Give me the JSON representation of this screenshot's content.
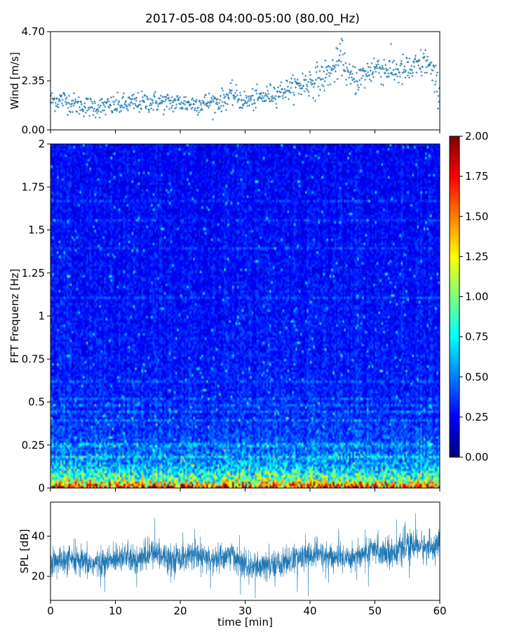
{
  "chart_data": [
    {
      "type": "scatter",
      "name": "wind-panel",
      "title": "2017-05-08 04:00-05:00 (80.00_Hz)",
      "xlabel": "",
      "ylabel": "Wind [m/s]",
      "xlim": [
        0,
        60
      ],
      "ylim": [
        0,
        4.7
      ],
      "yticks": [
        {
          "value": 0.0,
          "label": "0.00"
        },
        {
          "value": 2.35,
          "label": "2.35"
        },
        {
          "value": 4.7,
          "label": "4.70"
        }
      ],
      "xticks": [
        0,
        10,
        20,
        30,
        40,
        50,
        60
      ],
      "marker": "+",
      "color": "#1f77b4",
      "trend": {
        "x": [
          0,
          2,
          4,
          6,
          8,
          10,
          12,
          14,
          16,
          18,
          20,
          22,
          24,
          26,
          28,
          30,
          32,
          34,
          36,
          38,
          40,
          42,
          44,
          45,
          46,
          48,
          50,
          52,
          54,
          56,
          58,
          60
        ],
        "y": [
          1.4,
          1.45,
          1.2,
          1.1,
          1.1,
          1.15,
          1.25,
          1.3,
          1.35,
          1.3,
          1.3,
          1.25,
          1.3,
          1.35,
          1.7,
          1.35,
          1.5,
          1.7,
          1.9,
          2.1,
          2.3,
          2.5,
          3.0,
          3.6,
          2.4,
          2.5,
          3.0,
          2.9,
          2.8,
          2.9,
          3.3,
          1.8
        ]
      },
      "spread": 0.25,
      "samples_per_min": 14
    },
    {
      "type": "heatmap",
      "name": "spectrogram-panel",
      "xlabel": "",
      "ylabel": "FFT Frequenz [Hz]",
      "xlim": [
        0,
        60
      ],
      "ylim": [
        0,
        2
      ],
      "yticks": [
        {
          "value": 0,
          "label": "0"
        },
        {
          "value": 0.25,
          "label": "0.25"
        },
        {
          "value": 0.5,
          "label": "0.5"
        },
        {
          "value": 0.75,
          "label": "0.75"
        },
        {
          "value": 1,
          "label": "1"
        },
        {
          "value": 1.25,
          "label": "1.25"
        },
        {
          "value": 1.5,
          "label": "1.5"
        },
        {
          "value": 1.75,
          "label": "1.75"
        },
        {
          "value": 2,
          "label": "2"
        }
      ],
      "colormap": "jet",
      "clim": [
        0,
        2
      ],
      "colorbar_ticks": [
        {
          "value": 0.0,
          "label": "0.00"
        },
        {
          "value": 0.25,
          "label": "0.25"
        },
        {
          "value": 0.5,
          "label": "0.50"
        },
        {
          "value": 0.75,
          "label": "0.75"
        },
        {
          "value": 1.0,
          "label": "1.00"
        },
        {
          "value": 1.25,
          "label": "1.25"
        },
        {
          "value": 1.5,
          "label": "1.50"
        },
        {
          "value": 1.75,
          "label": "1.75"
        },
        {
          "value": 2.0,
          "label": "2.00"
        }
      ],
      "time_bins": 240,
      "freq_bins": 160,
      "amplitude_profile": {
        "freq": [
          0.0,
          0.02,
          0.05,
          0.1,
          0.15,
          0.25,
          0.4,
          0.6,
          1.0,
          1.5,
          2.0
        ],
        "level": [
          1.85,
          1.4,
          0.95,
          0.7,
          0.55,
          0.42,
          0.33,
          0.3,
          0.28,
          0.26,
          0.25
        ]
      }
    },
    {
      "type": "line",
      "name": "spl-panel",
      "xlabel": "time [min]",
      "ylabel": "SPL [dB]",
      "xlim": [
        0,
        60
      ],
      "ylim": [
        8,
        57
      ],
      "yticks": [
        {
          "value": 20,
          "label": "20"
        },
        {
          "value": 40,
          "label": "40"
        }
      ],
      "xticks": [
        {
          "value": 0,
          "label": "0"
        },
        {
          "value": 10,
          "label": "10"
        },
        {
          "value": 20,
          "label": "20"
        },
        {
          "value": 30,
          "label": "30"
        },
        {
          "value": 40,
          "label": "40"
        },
        {
          "value": 50,
          "label": "50"
        },
        {
          "value": 60,
          "label": "60"
        }
      ],
      "color": "#1f77b4",
      "trend": {
        "x": [
          0,
          3,
          6,
          9,
          11,
          13,
          16,
          19,
          22,
          25,
          28,
          30,
          32,
          35,
          38,
          41,
          44,
          47,
          50,
          53,
          56,
          58,
          60
        ],
        "y": [
          27,
          28,
          26,
          27,
          31,
          27,
          32,
          29,
          30,
          28,
          31,
          25,
          24,
          26,
          29,
          31,
          29,
          30,
          33,
          32,
          36,
          34,
          36
        ]
      },
      "spread": 6
    }
  ]
}
